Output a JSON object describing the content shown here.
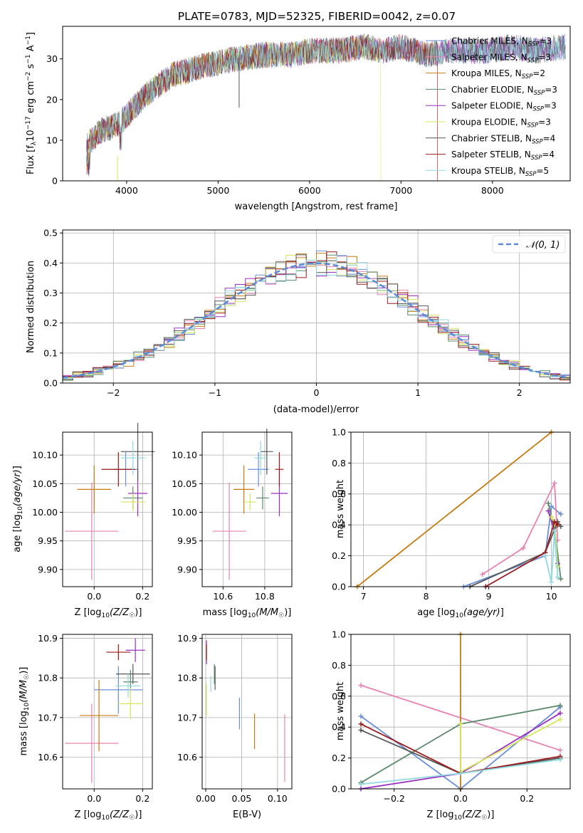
{
  "figure": {
    "title": "PLATE=0783, MJD=52325, FIBERID=0042, z=0.07"
  },
  "colors": {
    "series": [
      "#6a8fd8",
      "#e882b4",
      "#c67b12",
      "#5a8a6a",
      "#9b30c0",
      "#d7e65b",
      "#555555",
      "#9b1b1b",
      "#8fd8e0"
    ],
    "gauss": "#5b8bd6"
  },
  "chart_data": [
    {
      "id": "spectrum",
      "type": "line",
      "xlabel": "wavelength [Angstrom, rest frame]",
      "ylabel": "Flux [f_λ 10^-17 erg cm^-2 s^-1 A^-1]",
      "xlim": [
        3300,
        8850
      ],
      "ylim": [
        0,
        38
      ],
      "xticks": [
        "4000",
        "5000",
        "6000",
        "7000",
        "8000"
      ],
      "yticks": [
        "0",
        "10",
        "20",
        "30"
      ],
      "x": [
        3560,
        3700,
        3900,
        4000,
        4200,
        4500,
        4800,
        5000,
        5200,
        5500,
        5800,
        6000,
        6300,
        6600,
        6800,
        7000,
        7300,
        7500,
        7800,
        8000,
        8200,
        8500,
        8800
      ],
      "y": [
        9,
        12,
        14,
        16,
        21,
        26,
        28,
        29,
        30,
        31,
        31,
        32,
        32,
        33,
        32,
        33,
        31,
        32,
        32,
        32,
        33,
        32,
        33
      ],
      "series_names": [
        "Chabrier MILES, N_SSP=3",
        "Salpeter MILES, N_SSP=3",
        "Kroupa MILES, N_SSP=2",
        "Chabrier ELODIE, N_SSP=3",
        "Salpeter ELODIE, N_SSP=3",
        "Kroupa ELODIE, N_SSP=3",
        "Chabrier STELIB, N_SSP=4",
        "Salpeter STELIB, N_SSP=4",
        "Kroupa STELIB, N_SSP=5"
      ],
      "legend_labels": [
        {
          "pre": "Chabrier MILES, N",
          "sub": "SSP",
          "post": "=3"
        },
        {
          "pre": "Salpeter MILES, N",
          "sub": "SSP",
          "post": "=3"
        },
        {
          "pre": "Kroupa MILES, N",
          "sub": "SSP",
          "post": "=2"
        },
        {
          "pre": "Chabrier ELODIE, N",
          "sub": "SSP",
          "post": "=3"
        },
        {
          "pre": "Salpeter ELODIE, N",
          "sub": "SSP",
          "post": "=3"
        },
        {
          "pre": "Kroupa ELODIE, N",
          "sub": "SSP",
          "post": "=3"
        },
        {
          "pre": "Chabrier STELIB, N",
          "sub": "SSP",
          "post": "=4"
        },
        {
          "pre": "Salpeter STELIB, N",
          "sub": "SSP",
          "post": "=4"
        },
        {
          "pre": "Kroupa STELIB, N",
          "sub": "SSP",
          "post": "=5"
        }
      ],
      "legend_position": "top-right"
    },
    {
      "id": "residuals",
      "type": "histogram",
      "xlabel": "(data-model)/error",
      "ylabel": "Normed distribution",
      "xlim": [
        -2.5,
        2.5
      ],
      "ylim": [
        0,
        0.51
      ],
      "xticks": [
        "−2",
        "−1",
        "0",
        "1",
        "2"
      ],
      "yticks": [
        "0.0",
        "0.1",
        "0.2",
        "0.3",
        "0.4",
        "0.5"
      ],
      "legend": "𝒩(0, 1)",
      "legend_position": "top-right",
      "grid": true
    },
    {
      "id": "age_vs_Z",
      "type": "errorbar",
      "xlabel": "Z [log10(Z/Z☉)]",
      "ylabel": "age [log10(age/yr)]",
      "xlim": [
        -0.13,
        0.24
      ],
      "ylim": [
        9.87,
        10.14
      ],
      "xticks": [
        "0.0",
        "0.2"
      ],
      "yticks": [
        "9.90",
        "9.95",
        "10.00",
        "10.05",
        "10.10"
      ],
      "points": [
        {
          "x": 0.13,
          "y": 10.075,
          "xe": 0.05,
          "ye": 0.03
        },
        {
          "x": -0.01,
          "y": 9.967,
          "xe": 0.11,
          "ye": 0.085
        },
        {
          "x": 0.0,
          "y": 10.04,
          "xe": 0.07,
          "ye": 0.042
        },
        {
          "x": 0.16,
          "y": 10.025,
          "xe": 0.04,
          "ye": 0.02
        },
        {
          "x": 0.18,
          "y": 10.033,
          "xe": 0.04,
          "ye": 0.04
        },
        {
          "x": 0.16,
          "y": 10.018,
          "xe": 0.05,
          "ye": 0.015
        },
        {
          "x": 0.18,
          "y": 10.106,
          "xe": 0.07,
          "ye": 0.05
        },
        {
          "x": 0.1,
          "y": 10.075,
          "xe": 0.07,
          "ye": 0.03
        },
        {
          "x": 0.16,
          "y": 10.095,
          "xe": 0.05,
          "ye": 0.03
        }
      ]
    },
    {
      "id": "age_vs_mass",
      "type": "errorbar",
      "xlabel": "mass [log10(M/M☉)]",
      "ylabel": "",
      "xlim": [
        10.5,
        10.93
      ],
      "ylim": [
        9.87,
        10.14
      ],
      "xticks": [
        "10.6",
        "10.8"
      ],
      "yticks": [
        "9.90",
        "9.95",
        "10.00",
        "10.05",
        "10.10"
      ],
      "points": [
        {
          "x": 10.77,
          "y": 10.075,
          "xe": 0.05,
          "ye": 0.03
        },
        {
          "x": 10.63,
          "y": 9.967,
          "xe": 0.08,
          "ye": 0.085
        },
        {
          "x": 10.7,
          "y": 10.04,
          "xe": 0.05,
          "ye": 0.042
        },
        {
          "x": 10.79,
          "y": 10.025,
          "xe": 0.03,
          "ye": 0.02
        },
        {
          "x": 10.87,
          "y": 10.033,
          "xe": 0.04,
          "ye": 0.04
        },
        {
          "x": 10.73,
          "y": 10.018,
          "xe": 0.03,
          "ye": 0.015
        },
        {
          "x": 10.81,
          "y": 10.106,
          "xe": 0.03,
          "ye": 0.04
        },
        {
          "x": 10.87,
          "y": 10.075,
          "xe": 0.02,
          "ye": 0.03
        },
        {
          "x": 10.78,
          "y": 10.095,
          "xe": 0.03,
          "ye": 0.03
        }
      ]
    },
    {
      "id": "weight_vs_age",
      "type": "line",
      "xlabel": "age [log10(age/yr)]",
      "ylabel": "mass weight",
      "xlim": [
        6.8,
        10.3
      ],
      "ylim": [
        0,
        1
      ],
      "xticks": [
        "7",
        "8",
        "9",
        "10"
      ],
      "yticks": [
        "0.0",
        "0.2",
        "0.4",
        "0.6",
        "0.8",
        "1.0"
      ],
      "grid": true,
      "series": [
        {
          "x": [
            8.6,
            9.9,
            10.0,
            10.15
          ],
          "y": [
            0.0,
            0.2,
            0.52,
            0.47
          ]
        },
        {
          "x": [
            8.9,
            9.55,
            10.05,
            10.1
          ],
          "y": [
            0.08,
            0.25,
            0.67,
            0.3
          ]
        },
        {
          "x": [
            6.9,
            10.0
          ],
          "y": [
            0.0,
            1.0
          ]
        },
        {
          "x": [
            9.95,
            10.05,
            10.15
          ],
          "y": [
            0.54,
            0.38,
            0.05
          ]
        },
        {
          "x": [
            9.95,
            10.05,
            10.1
          ],
          "y": [
            0.49,
            0.36,
            0.15
          ]
        },
        {
          "x": [
            10.0,
            10.05,
            10.1
          ],
          "y": [
            0.45,
            0.42,
            0.13
          ]
        },
        {
          "x": [
            8.7,
            9.9,
            10.1,
            10.15
          ],
          "y": [
            0.0,
            0.22,
            0.42,
            0.39
          ]
        },
        {
          "x": [
            8.95,
            9.9,
            10.05,
            10.1
          ],
          "y": [
            0.0,
            0.22,
            0.42,
            0.4
          ]
        },
        {
          "x": [
            9.9,
            10.0,
            10.05,
            10.1
          ],
          "y": [
            0.2,
            0.03,
            0.36,
            0.06
          ]
        }
      ]
    },
    {
      "id": "mass_vs_Z",
      "type": "errorbar",
      "xlabel": "Z [log10(Z/Z☉)]",
      "ylabel": "mass [log10(M/M☉)]",
      "xlim": [
        -0.13,
        0.24
      ],
      "ylim": [
        10.52,
        10.91
      ],
      "xticks": [
        "0.0",
        "0.2"
      ],
      "yticks": [
        "10.6",
        "10.7",
        "10.8",
        "10.9"
      ],
      "points": [
        {
          "x": 0.1,
          "y": 10.77,
          "xe": 0.1,
          "ye": 0.06
        },
        {
          "x": -0.01,
          "y": 10.635,
          "xe": 0.11,
          "ye": 0.1
        },
        {
          "x": 0.02,
          "y": 10.705,
          "xe": 0.08,
          "ye": 0.09
        },
        {
          "x": 0.15,
          "y": 10.79,
          "xe": 0.03,
          "ye": 0.03
        },
        {
          "x": 0.17,
          "y": 10.87,
          "xe": 0.04,
          "ye": 0.03
        },
        {
          "x": 0.15,
          "y": 10.735,
          "xe": 0.05,
          "ye": 0.04
        },
        {
          "x": 0.16,
          "y": 10.81,
          "xe": 0.07,
          "ye": 0.025
        },
        {
          "x": 0.1,
          "y": 10.865,
          "xe": 0.05,
          "ye": 0.02
        },
        {
          "x": 0.14,
          "y": 10.78,
          "xe": 0.05,
          "ye": 0.03
        }
      ]
    },
    {
      "id": "mass_vs_ebv",
      "type": "errorbar",
      "xlabel": "E(B-V)",
      "ylabel": "",
      "xlim": [
        -0.005,
        0.12
      ],
      "ylim": [
        10.52,
        10.91
      ],
      "xticks": [
        "0.00",
        "0.05",
        "0.10"
      ],
      "yticks": [
        "10.6",
        "10.7",
        "10.8",
        "10.9"
      ],
      "points": [
        {
          "x": 0.047,
          "y": 10.71,
          "ye": 0.04
        },
        {
          "x": 0.11,
          "y": 10.623,
          "ye": 0.085
        },
        {
          "x": 0.068,
          "y": 10.665,
          "ye": 0.045
        },
        {
          "x": 0.012,
          "y": 10.81,
          "ye": 0.025
        },
        {
          "x": 0.001,
          "y": 10.865,
          "ye": 0.03
        },
        {
          "x": 0.001,
          "y": 10.745,
          "ye": 0.04
        },
        {
          "x": 0.013,
          "y": 10.8,
          "ye": 0.03
        },
        {
          "x": 0.001,
          "y": 10.865,
          "ye": 0.02
        },
        {
          "x": 0.007,
          "y": 10.785,
          "ye": 0.02
        }
      ]
    },
    {
      "id": "weight_vs_Z",
      "type": "line",
      "xlabel": "Z [log10(Z/Z☉)]",
      "ylabel": "mass weight",
      "xlim": [
        -0.33,
        0.33
      ],
      "ylim": [
        0,
        1
      ],
      "xticks": [
        "−0.2",
        "0.0",
        "0.2"
      ],
      "yticks": [
        "0.0",
        "0.2",
        "0.4",
        "0.6",
        "0.8",
        "1.0"
      ],
      "grid": true,
      "series": [
        {
          "x": [
            -0.3,
            0.0,
            0.3
          ],
          "y": [
            0.47,
            0.0,
            0.53
          ]
        },
        {
          "x": [
            -0.3,
            0.3
          ],
          "y": [
            0.67,
            0.25
          ]
        },
        {
          "x": [
            0.0,
            0.0
          ],
          "y": [
            0.0,
            1.0
          ]
        },
        {
          "x": [
            -0.3,
            0.0,
            0.3
          ],
          "y": [
            0.04,
            0.42,
            0.54
          ]
        },
        {
          "x": [
            -0.3,
            0.0,
            0.3
          ],
          "y": [
            0.0,
            0.1,
            0.49
          ]
        },
        {
          "x": [
            0.0,
            0.0,
            0.3
          ],
          "y": [
            0.42,
            0.11,
            0.45
          ]
        },
        {
          "x": [
            -0.3,
            0.0,
            0.3
          ],
          "y": [
            0.38,
            0.1,
            0.2
          ]
        },
        {
          "x": [
            -0.3,
            0.0,
            0.3
          ],
          "y": [
            0.42,
            0.1,
            0.21
          ]
        },
        {
          "x": [
            -0.3,
            0.0,
            0.3
          ],
          "y": [
            0.03,
            0.1,
            0.19
          ]
        }
      ]
    }
  ]
}
